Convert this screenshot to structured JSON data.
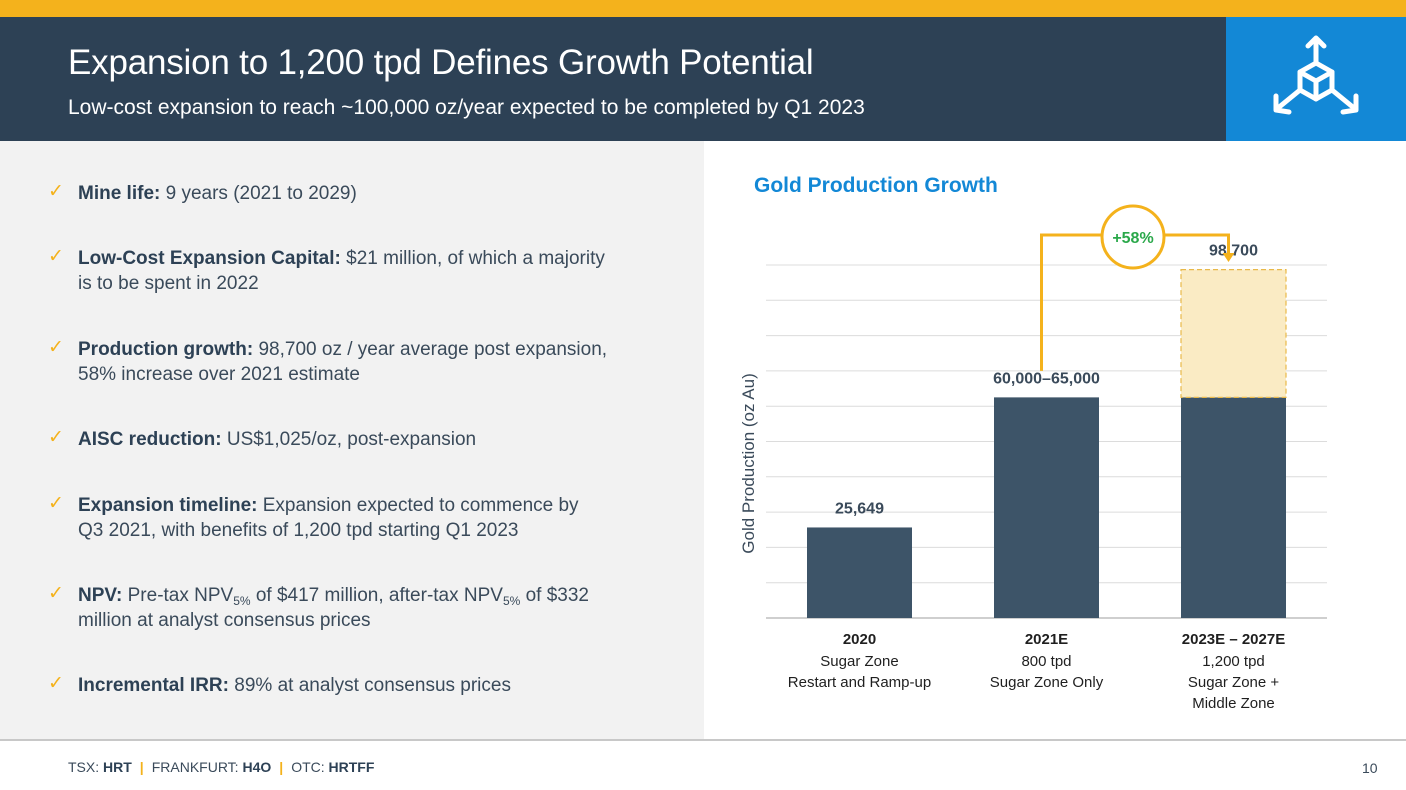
{
  "header": {
    "title": "Expansion to 1,200 tpd Defines Growth Potential",
    "subtitle": "Low-cost expansion to reach ~100,000 oz/year expected to be completed by Q1 2023",
    "logo_icon": "cube-arrows-icon",
    "accent_color": "#f4b21c",
    "header_color": "#2d4155",
    "logo_color": "#1388d6"
  },
  "bullets": [
    {
      "label": "Mine life:",
      "line1": " 9 years (2021 to 2029)",
      "line2": ""
    },
    {
      "label": "Low-Cost Expansion Capital:",
      "line1": " $21 million, of which a majority",
      "line2": "is to be spent in 2022"
    },
    {
      "label": "Production growth:",
      "line1": " 98,700 oz / year average post expansion,",
      "line2": "58% increase over 2021 estimate"
    },
    {
      "label": "AISC reduction:",
      "line1": " US$1,025/oz, post-expansion",
      "line2": ""
    },
    {
      "label": "Expansion timeline:",
      "line1": " Expansion expected to commence by",
      "line2": "Q3 2021, with benefits of 1,200 tpd starting Q1 2023"
    },
    {
      "label": "Incremental IRR:",
      "line1": " 89% at analyst consensus prices",
      "line2": ""
    }
  ],
  "npv_bullet": {
    "label": "NPV:",
    "part1": " Pre-tax NPV",
    "sub1": "5%",
    "part2": " of $417 million, after-tax NPV",
    "sub2": "5%",
    "part3": " of $332",
    "line2": "million at analyst consensus prices"
  },
  "chart_data": {
    "type": "bar",
    "title": "Gold Production Growth",
    "ylabel": "Gold Production (oz Au)",
    "xlabel": "",
    "ylim": [
      0,
      100000
    ],
    "grid": true,
    "categories": [
      "2020",
      "2021E",
      "2023E – 2027E"
    ],
    "category_sublabels": [
      [
        "Sugar Zone",
        "Restart and Ramp-up"
      ],
      [
        "800 tpd",
        "Sugar Zone  Only"
      ],
      [
        "1,200 tpd",
        "Sugar Zone +",
        "Middle Zone"
      ]
    ],
    "series": [
      {
        "name": "Production",
        "values": [
          25649,
          62500,
          62500
        ],
        "color": "#3d5468"
      },
      {
        "name": "Expansion increment",
        "values": [
          0,
          0,
          36200
        ],
        "color": "#faebc4",
        "style": "dashed"
      }
    ],
    "data_labels": [
      "25,649",
      "60,000–65,000",
      "98,700"
    ],
    "annotation": {
      "text": "+58%",
      "from": "2021E",
      "to": "2023E – 2027E",
      "color": "#f4b21c",
      "text_color": "#2aa84a"
    }
  },
  "footer": {
    "tsx_label": "TSX: ",
    "tsx_ticker": "HRT",
    "sep": "|",
    "frankfurt_label": "FRANKFURT: ",
    "frankfurt_ticker": "H4O",
    "otc_label": "OTC: ",
    "otc_ticker": "HRTFF",
    "page": "10"
  }
}
